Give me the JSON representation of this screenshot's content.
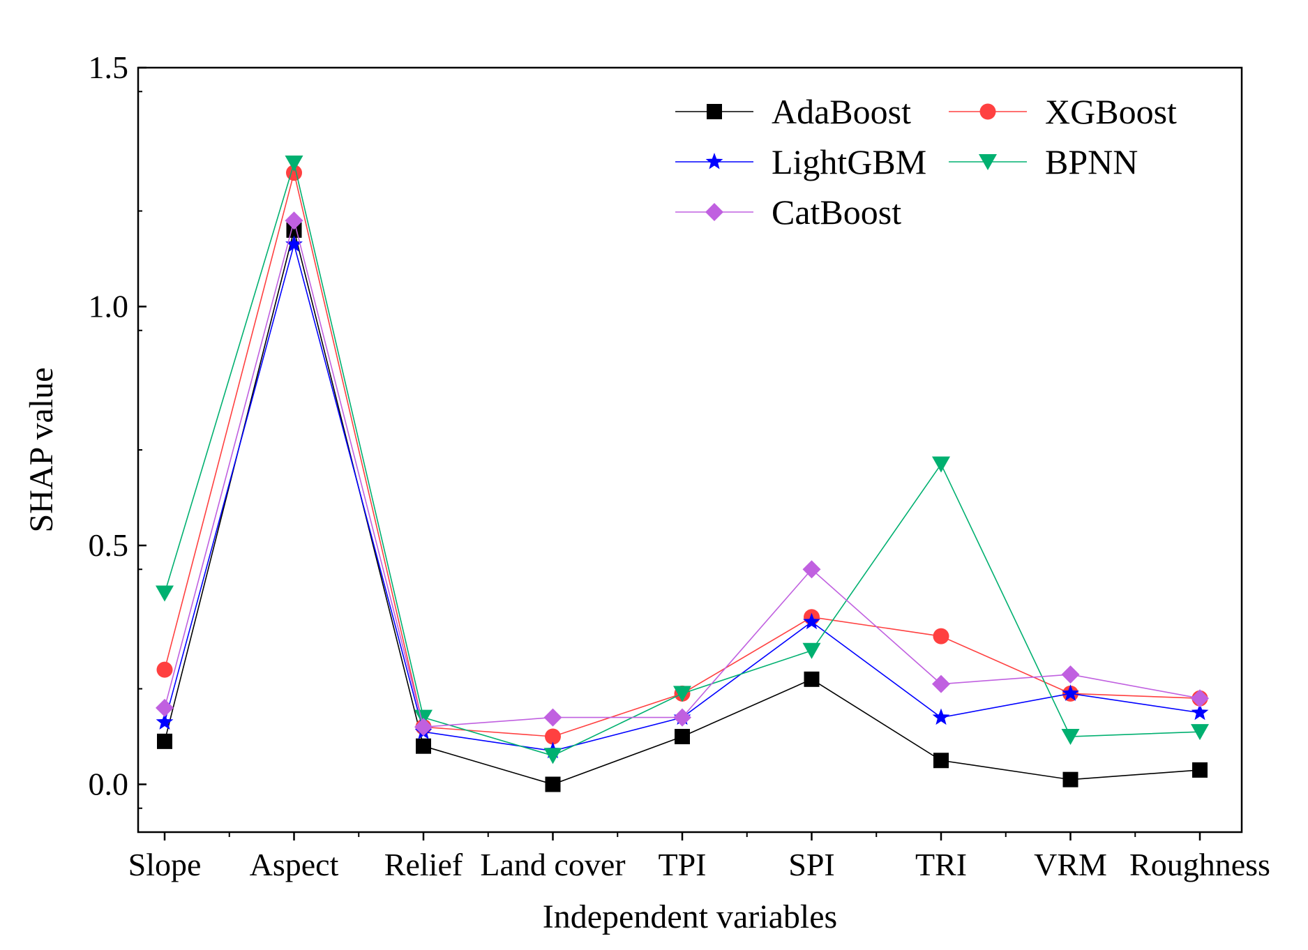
{
  "chart_data": {
    "type": "line",
    "title": "",
    "xlabel": "Independent variables",
    "ylabel": "SHAP value",
    "categories": [
      "Slope",
      "Aspect",
      "Relief",
      "Land cover",
      "TPI",
      "SPI",
      "TRI",
      "VRM",
      "Roughness"
    ],
    "ylim": [
      -0.1,
      1.5
    ],
    "yticks": [
      "0.0",
      "0.5",
      "1.0",
      "1.5"
    ],
    "ytick_values": [
      0,
      0.5,
      1.0,
      1.5
    ],
    "grid": false,
    "legend_position": "top-right",
    "series": [
      {
        "name": "AdaBoost",
        "color": "#000000",
        "marker": "square",
        "values": [
          0.09,
          1.16,
          0.08,
          0.0,
          0.1,
          0.22,
          0.05,
          0.01,
          0.03
        ]
      },
      {
        "name": "XGBoost",
        "color": "#ff4040",
        "marker": "circle",
        "values": [
          0.24,
          1.28,
          0.12,
          0.1,
          0.19,
          0.35,
          0.31,
          0.19,
          0.18
        ]
      },
      {
        "name": "LightGBM",
        "color": "#0000ff",
        "marker": "star",
        "values": [
          0.13,
          1.13,
          0.11,
          0.07,
          0.14,
          0.34,
          0.14,
          0.19,
          0.15
        ]
      },
      {
        "name": "BPNN",
        "color": "#00b070",
        "marker": "triangle-down",
        "values": [
          0.4,
          1.3,
          0.14,
          0.06,
          0.19,
          0.28,
          0.67,
          0.1,
          0.11
        ]
      },
      {
        "name": "CatBoost",
        "color": "#c060e0",
        "marker": "diamond",
        "values": [
          0.16,
          1.18,
          0.12,
          0.14,
          0.14,
          0.45,
          0.21,
          0.23,
          0.18
        ]
      }
    ]
  }
}
